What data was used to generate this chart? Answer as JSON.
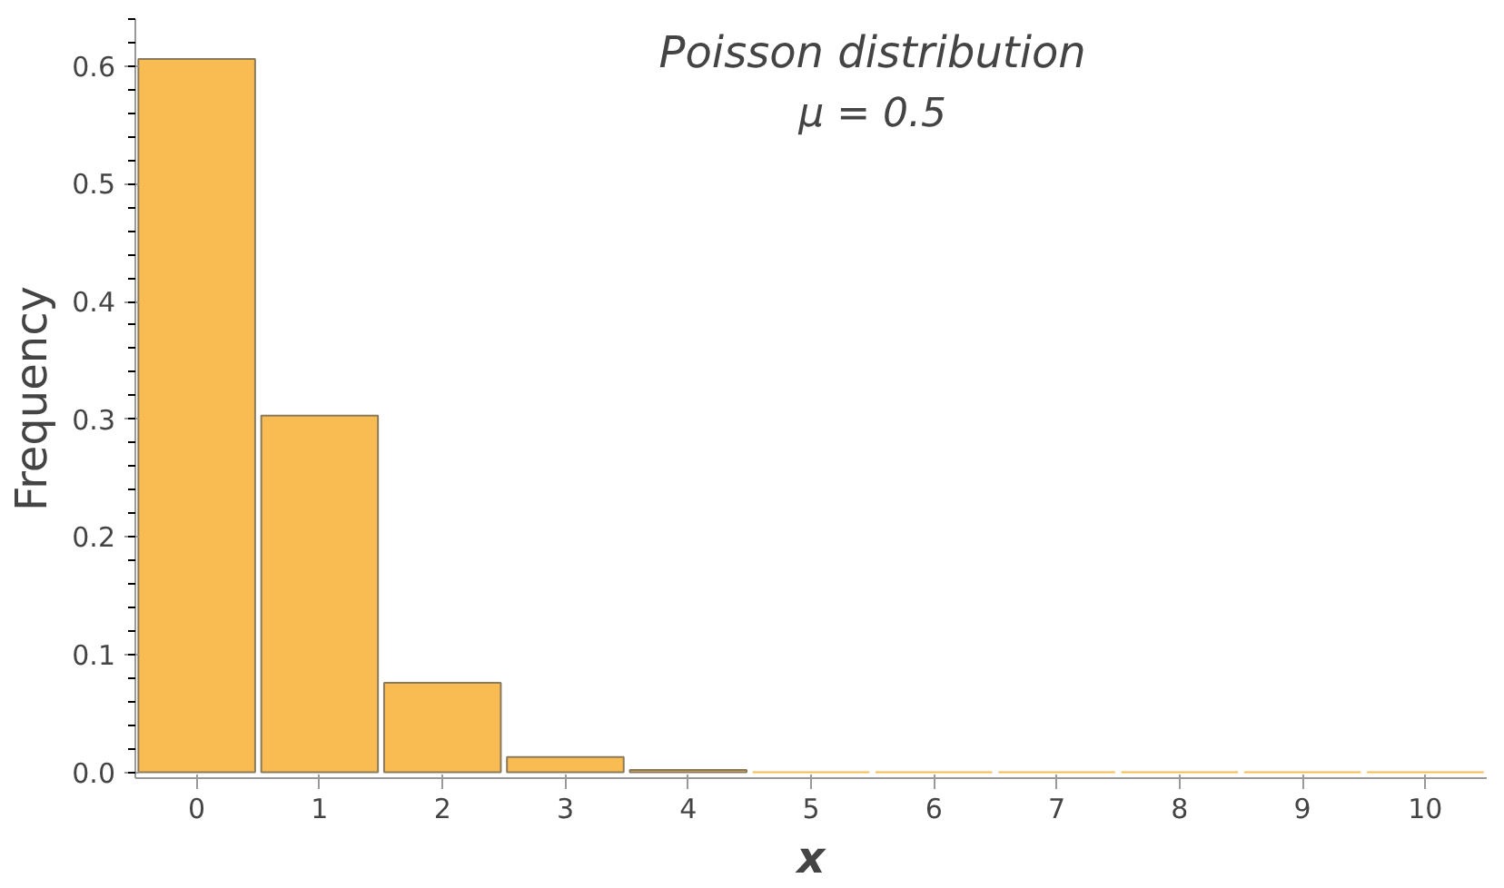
{
  "chart_data": {
    "type": "bar",
    "title": "Poisson distribution",
    "subtitle": "μ = 0.5",
    "xlabel": "x",
    "ylabel": "Frequency",
    "categories": [
      "0",
      "1",
      "2",
      "3",
      "4",
      "5",
      "6",
      "7",
      "8",
      "9",
      "10"
    ],
    "values": [
      0.606,
      0.303,
      0.076,
      0.013,
      0.002,
      0,
      0,
      0,
      0,
      0,
      0
    ],
    "color": "#f9bc52",
    "ylim": [
      -0.005,
      0.64
    ],
    "yticks": [
      {
        "value": 0,
        "label": "0.0"
      },
      0.1,
      0.2,
      0.3,
      0.4,
      0.5,
      0.6
    ],
    "grid": false
  }
}
